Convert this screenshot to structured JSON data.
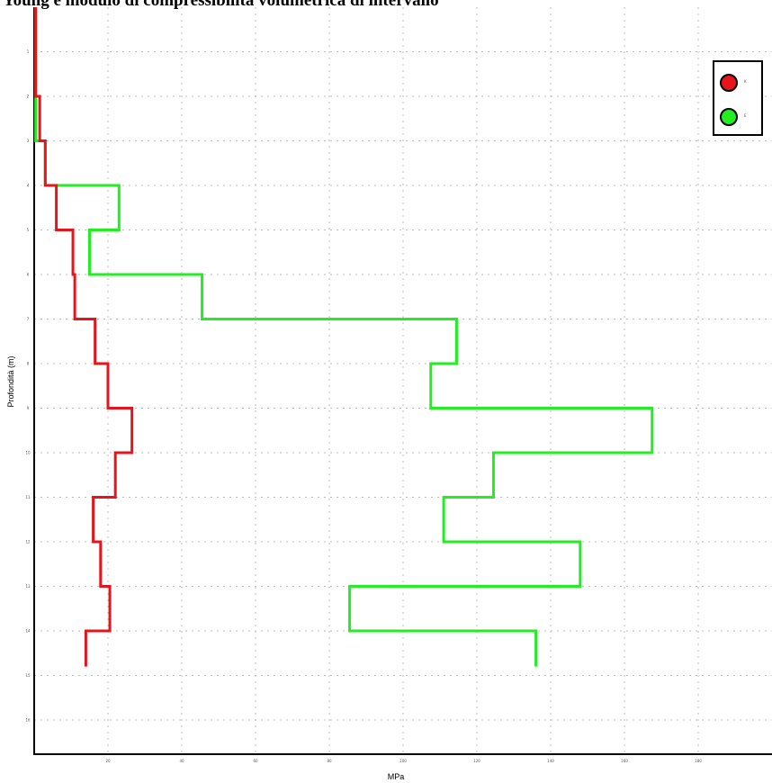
{
  "title": "Young e modulo di compressibilità volumetrica di intervallo",
  "chart_data": {
    "type": "line",
    "title": "Young e modulo di compressibilità volumetrica di intervallo",
    "xlabel": "MPa",
    "ylabel": "Profondità (m)",
    "xlim": [
      0,
      200
    ],
    "ylim": [
      0,
      16
    ],
    "y_inverted": true,
    "xticks": [
      20,
      40,
      60,
      80,
      100,
      120,
      140,
      160,
      180
    ],
    "yticks": [
      1,
      2,
      3,
      4,
      5,
      6,
      7,
      8,
      9,
      10,
      11,
      12,
      13,
      14,
      15,
      16
    ],
    "xtick_labels": [
      "20",
      "40",
      "60",
      "80",
      "100",
      "120",
      "140",
      "160",
      "180"
    ],
    "ytick_labels": [
      "1",
      "2",
      "3",
      "4",
      "5",
      "6",
      "7",
      "8",
      "9",
      "10",
      "11",
      "12",
      "13",
      "14",
      "15",
      "16"
    ],
    "grid": true,
    "legend_position": "top-right",
    "series": [
      {
        "name": "K",
        "color": "#e8141c",
        "step_values": [
          0.4,
          1.5,
          3,
          6,
          10.5,
          11,
          16.5,
          20,
          26.5,
          22,
          16,
          18,
          20.5,
          14
        ],
        "interval_starts": [
          0,
          2,
          3,
          4,
          5,
          6,
          7,
          8,
          9,
          10,
          11,
          12,
          13,
          14
        ],
        "interval_ends": [
          2,
          3,
          4,
          5,
          6,
          7,
          8,
          9,
          10,
          11,
          12,
          13,
          14,
          14.8
        ]
      },
      {
        "name": "E",
        "color": "#22ee22",
        "step_values": [
          0.4,
          3,
          23,
          15,
          45.5,
          114.5,
          107.5,
          167.5,
          124.5,
          111,
          148,
          85.5,
          136
        ],
        "interval_starts": [
          0,
          3,
          4,
          5,
          6,
          7,
          8,
          9,
          10,
          11,
          12,
          13,
          14
        ],
        "interval_ends": [
          3,
          4,
          5,
          6,
          7,
          8,
          9,
          10,
          11,
          12,
          13,
          14,
          14.8
        ]
      }
    ]
  }
}
